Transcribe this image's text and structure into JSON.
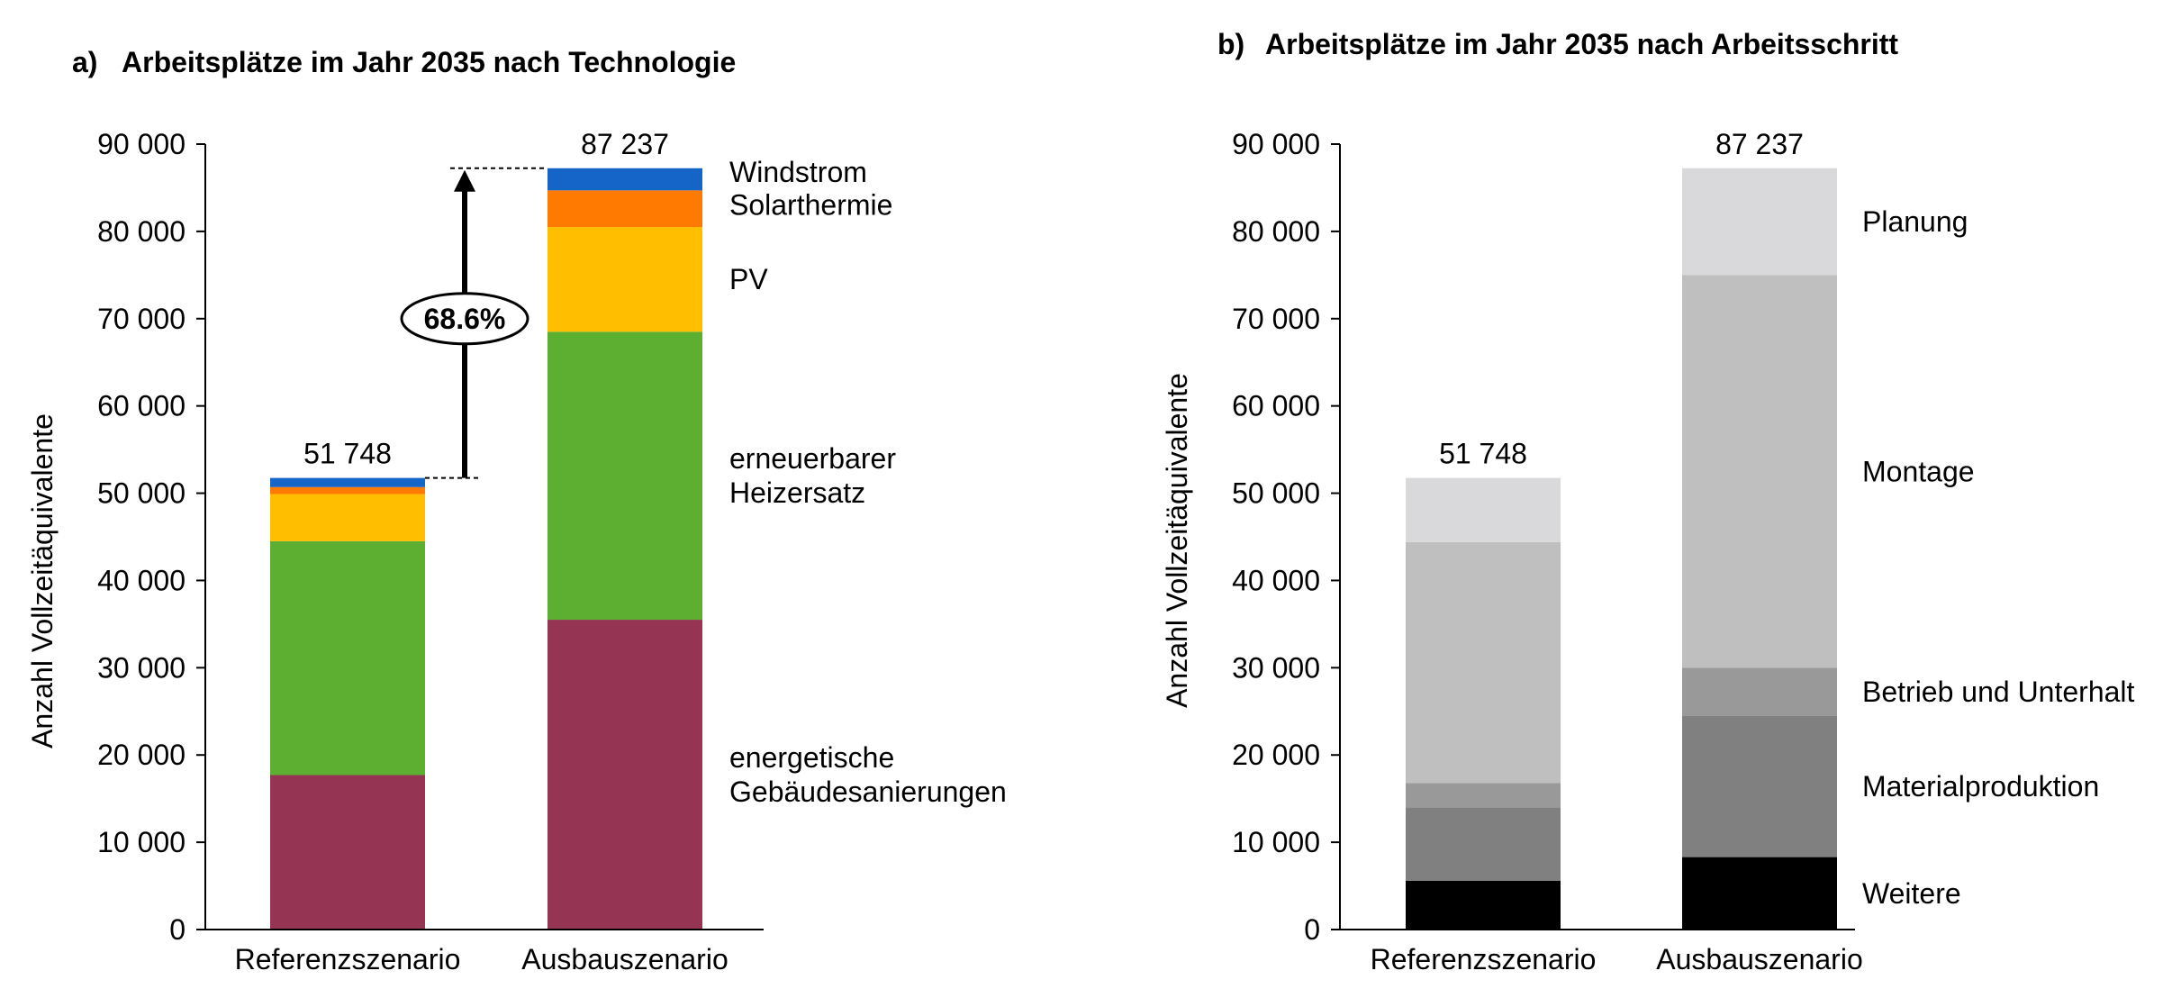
{
  "chart_data": [
    {
      "panel_label": "a)",
      "title": "Arbeitsplätze im Jahr 2035 nach Technologie",
      "type": "bar",
      "stacked": true,
      "ylabel": "Anzahl Vollzeitäquivalente",
      "ylim": [
        0,
        90000
      ],
      "yticks": [
        0,
        10000,
        20000,
        30000,
        40000,
        50000,
        60000,
        70000,
        80000,
        90000
      ],
      "ytick_labels": [
        "0",
        "10 000",
        "20 000",
        "30 000",
        "40 000",
        "50 000",
        "60 000",
        "70 000",
        "80 000",
        "90 000"
      ],
      "categories": [
        "Referenzszenario",
        "Ausbauszenario"
      ],
      "totals": [
        51748,
        87237
      ],
      "total_labels": [
        "51 748",
        "87 237"
      ],
      "series": [
        {
          "name": "energetische Gebäudesanierungen",
          "label_lines": [
            "energetische",
            "Gebäudesanierungen"
          ],
          "color": "#953553",
          "values": [
            17700,
            35500
          ]
        },
        {
          "name": "erneuerbarer Heizersatz",
          "label_lines": [
            "erneuerbarer",
            "Heizersatz"
          ],
          "color": "#5DAF32",
          "values": [
            26800,
            33000
          ]
        },
        {
          "name": "PV",
          "label_lines": [
            "PV"
          ],
          "color": "#FFBF00",
          "values": [
            5400,
            12000
          ]
        },
        {
          "name": "Solarthermie",
          "label_lines": [
            "Solarthermie"
          ],
          "color": "#FF7A00",
          "values": [
            800,
            4200
          ]
        },
        {
          "name": "Windstrom",
          "label_lines": [
            "Windstrom"
          ],
          "color": "#1565C8",
          "values": [
            1048,
            2537
          ]
        }
      ],
      "annotation": {
        "text": "68.6%",
        "from": 51748,
        "to": 87237
      }
    },
    {
      "panel_label": "b)",
      "title": "Arbeitsplätze im Jahr 2035 nach Arbeitsschritt",
      "type": "bar",
      "stacked": true,
      "ylabel": "Anzahl Vollzeitäquivalente",
      "ylim": [
        0,
        90000
      ],
      "yticks": [
        0,
        10000,
        20000,
        30000,
        40000,
        50000,
        60000,
        70000,
        80000,
        90000
      ],
      "ytick_labels": [
        "0",
        "10 000",
        "20 000",
        "30 000",
        "40 000",
        "50 000",
        "60 000",
        "70 000",
        "80 000",
        "90 000"
      ],
      "categories": [
        "Referenzszenario",
        "Ausbauszenario"
      ],
      "totals": [
        51748,
        87237
      ],
      "total_labels": [
        "51 748",
        "87 237"
      ],
      "series": [
        {
          "name": "Weitere",
          "label_lines": [
            "Weitere"
          ],
          "color": "#000000",
          "values": [
            5600,
            8300
          ]
        },
        {
          "name": "Materialproduktion",
          "label_lines": [
            "Materialproduktion"
          ],
          "color": "#808080",
          "values": [
            8400,
            16200
          ]
        },
        {
          "name": "Betrieb und Unterhalt",
          "label_lines": [
            "Betrieb und Unterhalt"
          ],
          "color": "#999999",
          "values": [
            2800,
            5500
          ]
        },
        {
          "name": "Montage",
          "label_lines": [
            "Montage"
          ],
          "color": "#BFBFBF",
          "values": [
            27600,
            45000
          ]
        },
        {
          "name": "Planung",
          "label_lines": [
            "Planung"
          ],
          "color": "#D9D9DC",
          "values": [
            7348,
            12237
          ]
        }
      ]
    }
  ]
}
